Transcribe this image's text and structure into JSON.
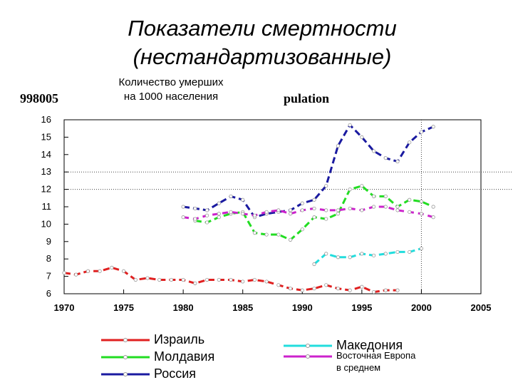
{
  "titles": {
    "line1": "Показатели смертности",
    "line2": "(нестандартизованные)"
  },
  "ghost_text": {
    "left": "998005",
    "right": "pulation"
  },
  "chart_data": {
    "type": "line",
    "ylabel_line1": "Количество умерших",
    "ylabel_line2": "на 1000 населения",
    "xlim": [
      1970,
      2005
    ],
    "ylim": [
      6,
      16
    ],
    "x_ticks": [
      1970,
      1975,
      1980,
      1985,
      1990,
      1995,
      2000,
      2005
    ],
    "y_ticks": [
      6,
      7,
      8,
      9,
      10,
      11,
      12,
      13,
      14,
      15,
      16
    ],
    "grid": "dotted lines at y=12, y=13 and x=2000",
    "legend_position": "bottom",
    "series": [
      {
        "name": "Израиль",
        "color": "#e02020",
        "x": [
          1970,
          1971,
          1972,
          1973,
          1974,
          1975,
          1976,
          1977,
          1978,
          1979,
          1980,
          1981,
          1982,
          1983,
          1984,
          1985,
          1986,
          1987,
          1988,
          1989,
          1990,
          1991,
          1992,
          1993,
          1994,
          1995,
          1996,
          1997,
          1998
        ],
        "values": [
          7.2,
          7.1,
          7.3,
          7.3,
          7.5,
          7.3,
          6.8,
          6.9,
          6.8,
          6.8,
          6.8,
          6.6,
          6.8,
          6.8,
          6.8,
          6.7,
          6.8,
          6.7,
          6.5,
          6.3,
          6.2,
          6.3,
          6.5,
          6.3,
          6.2,
          6.4,
          6.1,
          6.2,
          6.2
        ]
      },
      {
        "name": "Молдавия",
        "color": "#22dd22",
        "x": [
          1981,
          1982,
          1983,
          1984,
          1985,
          1986,
          1987,
          1988,
          1989,
          1990,
          1991,
          1992,
          1993,
          1994,
          1995,
          1996,
          1997,
          1998,
          1999,
          2000,
          2001
        ],
        "values": [
          10.2,
          10.1,
          10.4,
          10.6,
          10.7,
          9.5,
          9.4,
          9.4,
          9.1,
          9.7,
          10.4,
          10.3,
          10.6,
          12.0,
          12.2,
          11.6,
          11.6,
          11.0,
          11.4,
          11.3,
          11.0
        ]
      },
      {
        "name": "Россия",
        "color": "#1a1aa0",
        "x": [
          1980,
          1981,
          1982,
          1983,
          1984,
          1985,
          1986,
          1987,
          1988,
          1989,
          1990,
          1991,
          1992,
          1993,
          1994,
          1995,
          1996,
          1997,
          1998,
          1999,
          2000,
          2001
        ],
        "values": [
          11.0,
          10.9,
          10.8,
          11.2,
          11.6,
          11.4,
          10.4,
          10.6,
          10.7,
          10.8,
          11.2,
          11.4,
          12.2,
          14.5,
          15.7,
          15.0,
          14.2,
          13.8,
          13.6,
          14.7,
          15.3,
          15.6
        ]
      },
      {
        "name": "Македония",
        "color": "#22dddd",
        "x": [
          1991,
          1992,
          1993,
          1994,
          1995,
          1996,
          1997,
          1998,
          1999,
          2000
        ],
        "values": [
          7.7,
          8.3,
          8.1,
          8.1,
          8.3,
          8.2,
          8.3,
          8.4,
          8.4,
          8.6
        ]
      },
      {
        "name": "Восточная Европа в среднем",
        "name_line1": "Восточная Европа",
        "name_line2": "в среднем",
        "color": "#cc22cc",
        "x": [
          1980,
          1981,
          1982,
          1983,
          1984,
          1985,
          1986,
          1987,
          1988,
          1989,
          1990,
          1991,
          1992,
          1993,
          1994,
          1995,
          1996,
          1997,
          1998,
          1999,
          2000,
          2001
        ],
        "values": [
          10.4,
          10.3,
          10.5,
          10.6,
          10.7,
          10.6,
          10.5,
          10.7,
          10.8,
          10.6,
          10.8,
          10.9,
          10.8,
          10.8,
          10.9,
          10.8,
          11.0,
          11.0,
          10.8,
          10.7,
          10.6,
          10.4
        ]
      }
    ]
  }
}
